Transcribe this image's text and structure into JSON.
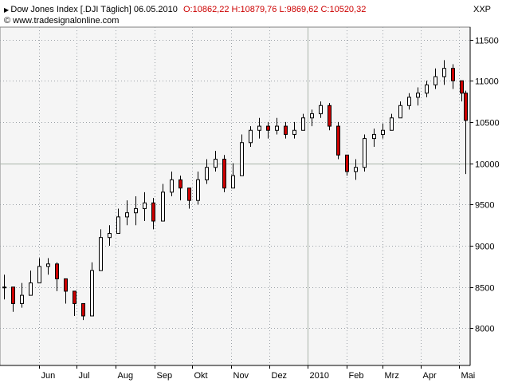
{
  "header": {
    "instrument": "Dow Jones Index [.DJI  Täglich] 06.05.2010",
    "ohlc": "O:10862,22 H:10879,76 L:9869,62 C:10520,32",
    "source": "© www.tradesignalonline.com",
    "corner_label": "XXP"
  },
  "colors": {
    "plot_bg": "#f5f5f5",
    "up": "#000000",
    "down": "#cc0000",
    "ohlc_text": "#cc0000",
    "grid": "#9aa0a6"
  },
  "chart_data": {
    "type": "candlestick",
    "title": "",
    "xlabel": "",
    "ylabel": "",
    "ylim": [
      7550,
      11650
    ],
    "yticks": [
      8000,
      8500,
      9000,
      9500,
      10000,
      10500,
      11000,
      11500
    ],
    "ytick_labels": [
      "8000",
      "8500",
      "9000",
      "9500",
      "10000",
      "10500",
      "11000",
      "11500"
    ],
    "xlim": [
      "2009-05-01",
      "2010-05-10"
    ],
    "xticks": [
      {
        "date": "2009-06-01",
        "label": "Jun"
      },
      {
        "date": "2009-07-01",
        "label": "Jul"
      },
      {
        "date": "2009-08-01",
        "label": "Aug"
      },
      {
        "date": "2009-09-01",
        "label": "Sep"
      },
      {
        "date": "2009-10-01",
        "label": "Okt"
      },
      {
        "date": "2009-11-01",
        "label": "Nov"
      },
      {
        "date": "2009-12-01",
        "label": "Dez"
      },
      {
        "date": "2010-01-01",
        "label": "2010"
      },
      {
        "date": "2010-02-01",
        "label": "Feb"
      },
      {
        "date": "2010-03-01",
        "label": "Mrz"
      },
      {
        "date": "2010-04-01",
        "label": "Apr"
      },
      {
        "date": "2010-05-01",
        "label": "Mai"
      }
    ],
    "grid": true,
    "crosshair": {
      "date": "2010-01-01",
      "value": 10000
    },
    "series": [
      {
        "x": [
          "2009-05-04",
          "2009-05-11",
          "2009-05-18",
          "2009-05-25",
          "2009-06-01",
          "2009-06-08",
          "2009-06-15",
          "2009-06-22",
          "2009-06-29",
          "2009-07-06",
          "2009-07-13",
          "2009-07-20",
          "2009-07-27",
          "2009-08-03",
          "2009-08-10",
          "2009-08-17",
          "2009-08-24",
          "2009-08-31",
          "2009-09-07",
          "2009-09-14",
          "2009-09-21",
          "2009-09-28",
          "2009-10-05",
          "2009-10-12",
          "2009-10-19",
          "2009-10-26",
          "2009-11-02",
          "2009-11-09",
          "2009-11-16",
          "2009-11-23",
          "2009-11-30",
          "2009-12-07",
          "2009-12-14",
          "2009-12-21",
          "2009-12-28",
          "2010-01-04",
          "2010-01-11",
          "2010-01-18",
          "2010-01-25",
          "2010-02-01",
          "2010-02-08",
          "2010-02-15",
          "2010-02-22",
          "2010-03-01",
          "2010-03-08",
          "2010-03-15",
          "2010-03-22",
          "2010-03-29",
          "2010-04-05",
          "2010-04-12",
          "2010-04-19",
          "2010-04-26",
          "2010-05-03",
          "2010-05-06"
        ],
        "values": [
          8500,
          8300,
          8400,
          8550,
          8750,
          8780,
          8600,
          8450,
          8300,
          8150,
          8700,
          9100,
          9150,
          9350,
          9400,
          9450,
          9520,
          9300,
          9650,
          9800,
          9700,
          9550,
          9800,
          9950,
          10050,
          9700,
          9850,
          10250,
          10400,
          10450,
          10400,
          10450,
          10350,
          10400,
          10550,
          10600,
          10700,
          10450,
          10100,
          9900,
          9950,
          10300,
          10350,
          10400,
          10550,
          10700,
          10800,
          10850,
          10950,
          11050,
          11150,
          11000,
          10850,
          10520
        ],
        "high": [
          8650,
          8500,
          8550,
          8700,
          8850,
          8850,
          8800,
          8600,
          8450,
          8250,
          8800,
          9200,
          9250,
          9450,
          9550,
          9600,
          9650,
          9580,
          9750,
          9900,
          9850,
          9700,
          9900,
          10050,
          10150,
          10100,
          10000,
          10350,
          10450,
          10550,
          10500,
          10550,
          10500,
          10500,
          10600,
          10650,
          10750,
          10730,
          10500,
          10100,
          10050,
          10350,
          10420,
          10480,
          10600,
          10750,
          10850,
          10920,
          11000,
          11150,
          11250,
          11200,
          11000,
          10879.76
        ],
        "low": [
          8350,
          8200,
          8250,
          8400,
          8550,
          8650,
          8450,
          8300,
          8150,
          8100,
          8150,
          8700,
          9000,
          9150,
          9250,
          9250,
          9300,
          9200,
          9300,
          9600,
          9550,
          9450,
          9500,
          9750,
          9900,
          9650,
          9700,
          9850,
          10200,
          10300,
          10300,
          10350,
          10300,
          10300,
          10400,
          10450,
          10550,
          10400,
          10050,
          9850,
          9800,
          9900,
          10200,
          10300,
          10400,
          10550,
          10650,
          10700,
          10800,
          10900,
          10950,
          10900,
          10750,
          9869.62
        ]
      }
    ]
  }
}
